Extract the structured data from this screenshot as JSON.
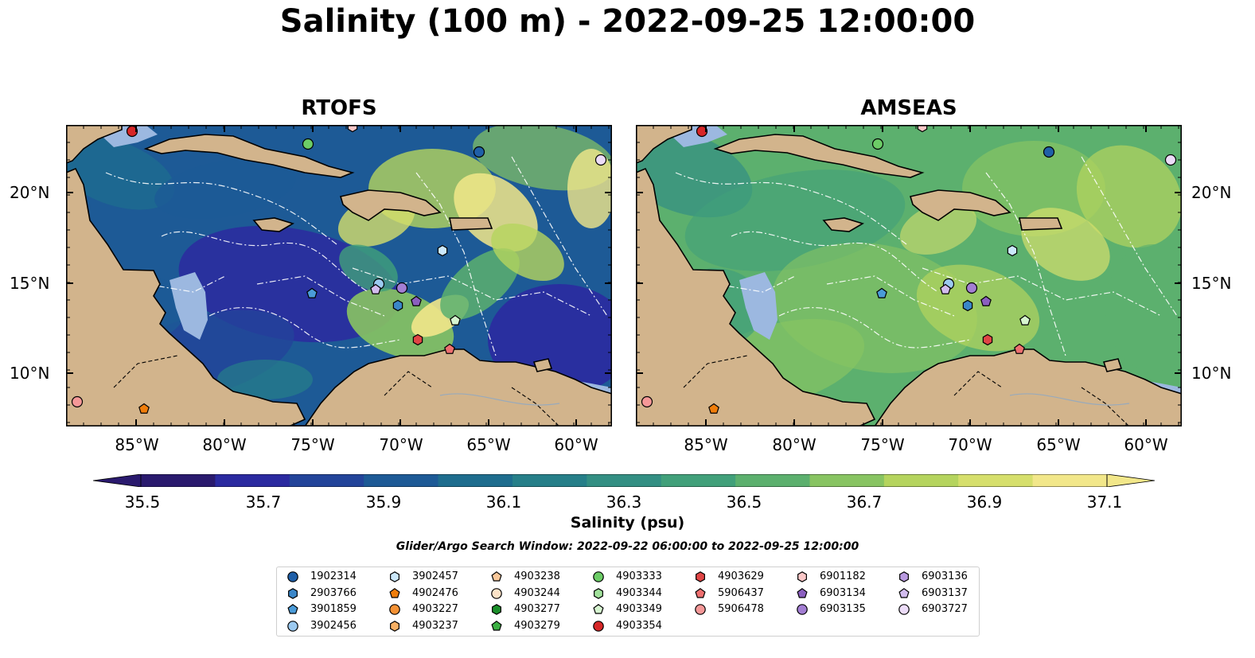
{
  "title": "Salinity (100 m) - 2022-09-25 12:00:00",
  "panels": [
    {
      "title": "RTOFS",
      "model": "rtofs"
    },
    {
      "title": "AMSEAS",
      "model": "amseas"
    }
  ],
  "lat_ticks": [
    "20°N",
    "15°N",
    "10°N"
  ],
  "lon_ticks": [
    "85°W",
    "80°W",
    "75°W",
    "70°W",
    "65°W",
    "60°W"
  ],
  "colorbar": {
    "label": "Salinity (psu)",
    "ticks": [
      "35.5",
      "35.7",
      "35.9",
      "36.1",
      "36.3",
      "36.5",
      "36.7",
      "36.9",
      "37.1"
    ],
    "colors": [
      "#2a1a6e",
      "#2b2aa0",
      "#23449a",
      "#1d5a96",
      "#1e6d8e",
      "#267f89",
      "#338f83",
      "#41a07a",
      "#5cb06e",
      "#88c462",
      "#b5d45e",
      "#d6df6c",
      "#f2e78a"
    ]
  },
  "search_window": "Glider/Argo Search Window: 2022-09-22 06:00:00 to 2022-09-25 12:00:00",
  "legend": {
    "columns": [
      [
        {
          "id": "1902314",
          "marker": "circle",
          "color": "#1f5fa8"
        },
        {
          "id": "2903766",
          "marker": "hexagon",
          "color": "#3a86c8"
        },
        {
          "id": "3901859",
          "marker": "pentagon",
          "color": "#4a9bd8"
        },
        {
          "id": "3902456",
          "marker": "circle",
          "color": "#9ccaf0"
        }
      ],
      [
        {
          "id": "3902457",
          "marker": "hexagon",
          "color": "#cbe8fb"
        },
        {
          "id": "4902476",
          "marker": "pentagon",
          "color": "#f07d0a"
        },
        {
          "id": "4903227",
          "marker": "circle",
          "color": "#f59235"
        },
        {
          "id": "4903237",
          "marker": "hexagon",
          "color": "#f7b064"
        }
      ],
      [
        {
          "id": "4903238",
          "marker": "pentagon",
          "color": "#f9c89a"
        },
        {
          "id": "4903244",
          "marker": "circle",
          "color": "#fde3c8"
        },
        {
          "id": "4903277",
          "marker": "hexagon",
          "color": "#1a8f2a"
        },
        {
          "id": "4903279",
          "marker": "pentagon",
          "color": "#3cb043"
        }
      ],
      [
        {
          "id": "4903333",
          "marker": "circle",
          "color": "#6ccc66"
        },
        {
          "id": "4903344",
          "marker": "hexagon",
          "color": "#a0e09a"
        },
        {
          "id": "4903349",
          "marker": "pentagon",
          "color": "#d6f5d0"
        },
        {
          "id": "4903354",
          "marker": "circle",
          "color": "#d62728"
        }
      ],
      [
        {
          "id": "4903629",
          "marker": "hexagon",
          "color": "#e04545"
        },
        {
          "id": "5906437",
          "marker": "pentagon",
          "color": "#ee6f6f"
        },
        {
          "id": "5906478",
          "marker": "circle",
          "color": "#f59898"
        }
      ],
      [
        {
          "id": "6901182",
          "marker": "hexagon",
          "color": "#fbc8c8"
        },
        {
          "id": "6903134",
          "marker": "pentagon",
          "color": "#8b5fbf"
        },
        {
          "id": "6903135",
          "marker": "circle",
          "color": "#a37ed3"
        }
      ],
      [
        {
          "id": "6903136",
          "marker": "hexagon",
          "color": "#b99ae0"
        },
        {
          "id": "6903137",
          "marker": "pentagon",
          "color": "#d2bcee"
        },
        {
          "id": "6903727",
          "marker": "circle",
          "color": "#ecdcf8"
        }
      ]
    ]
  },
  "map_colors": {
    "land": "#d2b48c",
    "shelf": "#9cb8e0",
    "coast": "#000000",
    "tracks": "#ffffff"
  }
}
